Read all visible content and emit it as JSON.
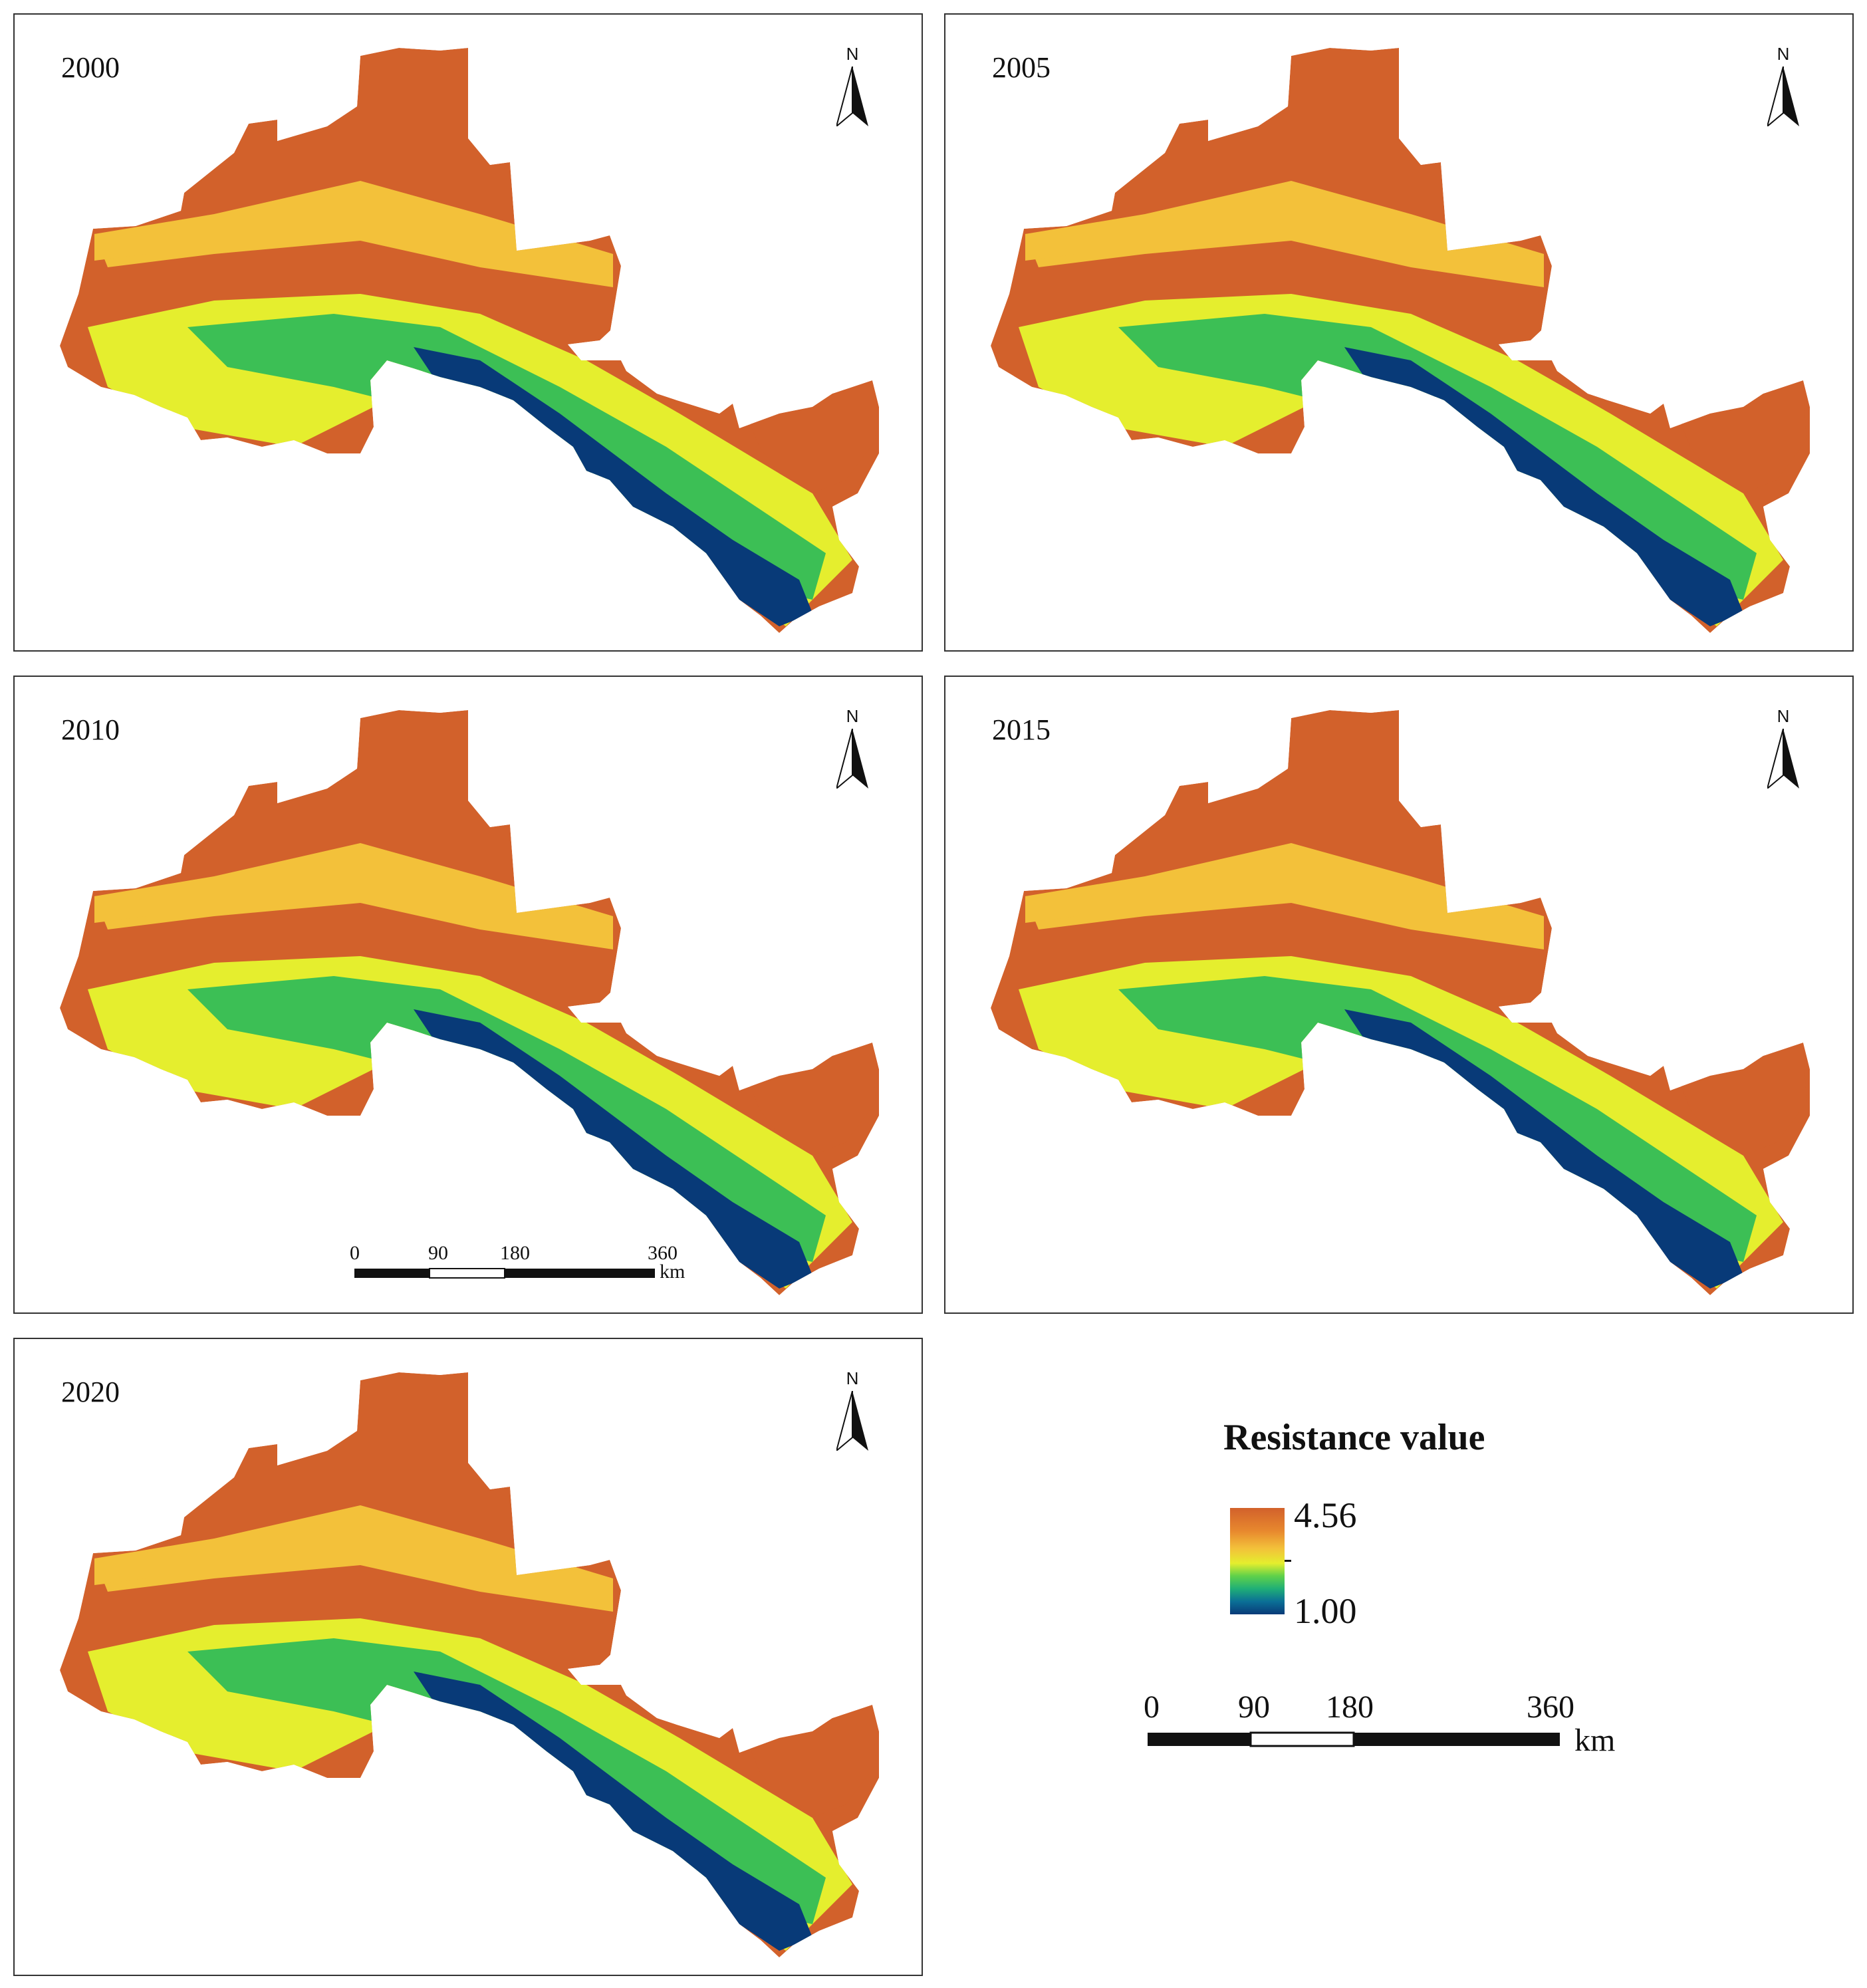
{
  "panels": [
    {
      "year": "2000"
    },
    {
      "year": "2005"
    },
    {
      "year": "2010"
    },
    {
      "year": "2015"
    },
    {
      "year": "2020"
    }
  ],
  "north_arrow_label": "N",
  "scale_bar": {
    "ticks": [
      "0",
      "90",
      "180",
      "360"
    ],
    "unit": "km"
  },
  "legend": {
    "title": "Resistance value",
    "max": "4.56",
    "min": "1.00",
    "ramp_colors": [
      "#d2612b",
      "#e8892e",
      "#f3c13a",
      "#e5ee2e",
      "#5fd14a",
      "#1fae77",
      "#0b6f96",
      "#083a78"
    ]
  },
  "colors": {
    "high": "#d2612b",
    "mid_high": "#f3c13a",
    "mid": "#e5ee2e",
    "mid_low": "#3cbf55",
    "low": "#083a78"
  }
}
